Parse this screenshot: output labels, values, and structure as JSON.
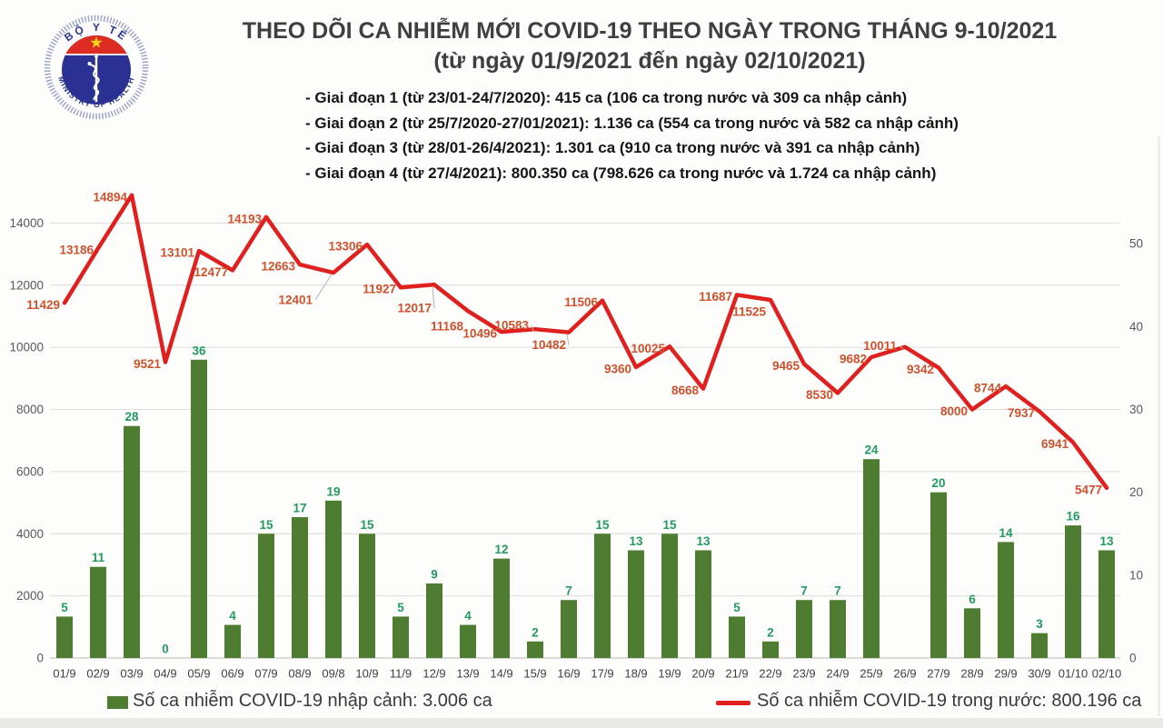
{
  "header": {
    "logo": {
      "top_text": "BỘ Y TẾ",
      "bottom_text": "MINISTRY OF HEALTH"
    },
    "title_line1": "THEO DÕI CA NHIỄM MỚI COVID-19 THEO NGÀY TRONG THÁNG 9-10/2021",
    "title_line2": "(từ ngày 01/9/2021 đến ngày 02/10/2021)",
    "phases": [
      "- Giai đoạn 1 (từ 23/01-24/7/2020): 415 ca (106 ca trong nước và 309 ca nhập cảnh)",
      "- Giai đoạn 2 (từ 25/7/2020-27/01/2021): 1.136 ca (554 ca trong nước và 582 ca nhập cảnh)",
      "- Giai đoạn 3 (từ 28/01-26/4/2021): 1.301 ca (910 ca trong nước và 391 ca nhập cảnh)",
      "- Giai đoạn 4 (từ 27/4/2021): 800.350 ca (798.626 ca trong nước và 1.724 ca nhập cảnh)"
    ]
  },
  "chart_data": {
    "type": "combo",
    "title": "THEO DÕI CA NHIỄM MỚI COVID-19 THEO NGÀY TRONG THÁNG 9-10/2021",
    "categories": [
      "01/9",
      "02/9",
      "03/9",
      "04/9",
      "05/9",
      "06/9",
      "07/9",
      "08/9",
      "09/8",
      "10/9",
      "11/9",
      "12/9",
      "13/9",
      "14/9",
      "15/9",
      "16/9",
      "17/9",
      "18/9",
      "19/9",
      "20/9",
      "21/9",
      "22/9",
      "23/9",
      "24/9",
      "25/9",
      "26/9",
      "27/9",
      "28/9",
      "29/9",
      "30/9",
      "01/10",
      "02/10"
    ],
    "series": [
      {
        "name": "Số ca nhiễm COVID-19 nhập cảnh",
        "type": "bar",
        "axis": "right",
        "color": "#4e7c31",
        "label_color": "#239b60",
        "values": [
          5,
          11,
          28,
          0,
          36,
          4,
          15,
          17,
          19,
          15,
          5,
          9,
          4,
          12,
          2,
          7,
          15,
          13,
          15,
          13,
          5,
          2,
          7,
          7,
          24,
          0,
          20,
          6,
          14,
          3,
          16,
          13
        ],
        "hidden_label_indices": [
          25
        ]
      },
      {
        "name": "Số ca nhiễm COVID-19 trong nước",
        "type": "line",
        "axis": "left",
        "color": "#e0201e",
        "label_color": "#d0512d",
        "values": [
          11429,
          13186,
          14894,
          9521,
          13101,
          12477,
          14193,
          12663,
          12401,
          13306,
          11927,
          12017,
          11168,
          10496,
          10583,
          10482,
          11506,
          9360,
          10025,
          8668,
          11687,
          11525,
          9465,
          8530,
          9682,
          10011,
          9342,
          8000,
          8744,
          7937,
          6941,
          5477
        ]
      }
    ],
    "left_axis": {
      "min": 0,
      "max": 16000,
      "tick_step": 2000,
      "tick_labels": [
        "0",
        "2000",
        "4000",
        "6000",
        "8000",
        "10000",
        "12000",
        "14000"
      ]
    },
    "right_axis": {
      "min": 0,
      "max": 60,
      "tick_step": 10,
      "tick_labels": [
        "0",
        "10",
        "20",
        "30",
        "40",
        "50"
      ]
    },
    "grid": true,
    "legend_position": "bottom",
    "label_layout": {
      "line_label_offsets": {
        "8": [
          -18,
          28
        ],
        "11": [
          2,
          24
        ],
        "12": [
          0,
          15
        ],
        "14": [
          -2,
          -6
        ],
        "15": [
          2,
          12
        ],
        "21": [
          0,
          11
        ],
        "25": [
          -4,
          -3
        ]
      },
      "leader_indices": [
        8,
        11,
        14,
        15,
        25
      ]
    }
  },
  "legend": {
    "items": [
      {
        "label": "Số ca nhiễm COVID-19 nhập cảnh: 3.006 ca",
        "marker": "square",
        "color": "#4e7c31"
      },
      {
        "label": "Số ca nhiễm COVID-19 trong nước: 800.196 ca",
        "marker": "line",
        "color": "#e0201e"
      }
    ]
  },
  "colors": {
    "grid": "#dcdcda",
    "axis_line": "#c8c8c6",
    "axis_text": "#595959",
    "x_text": "#3f3f3f",
    "title_text": "#3f3f3f"
  }
}
